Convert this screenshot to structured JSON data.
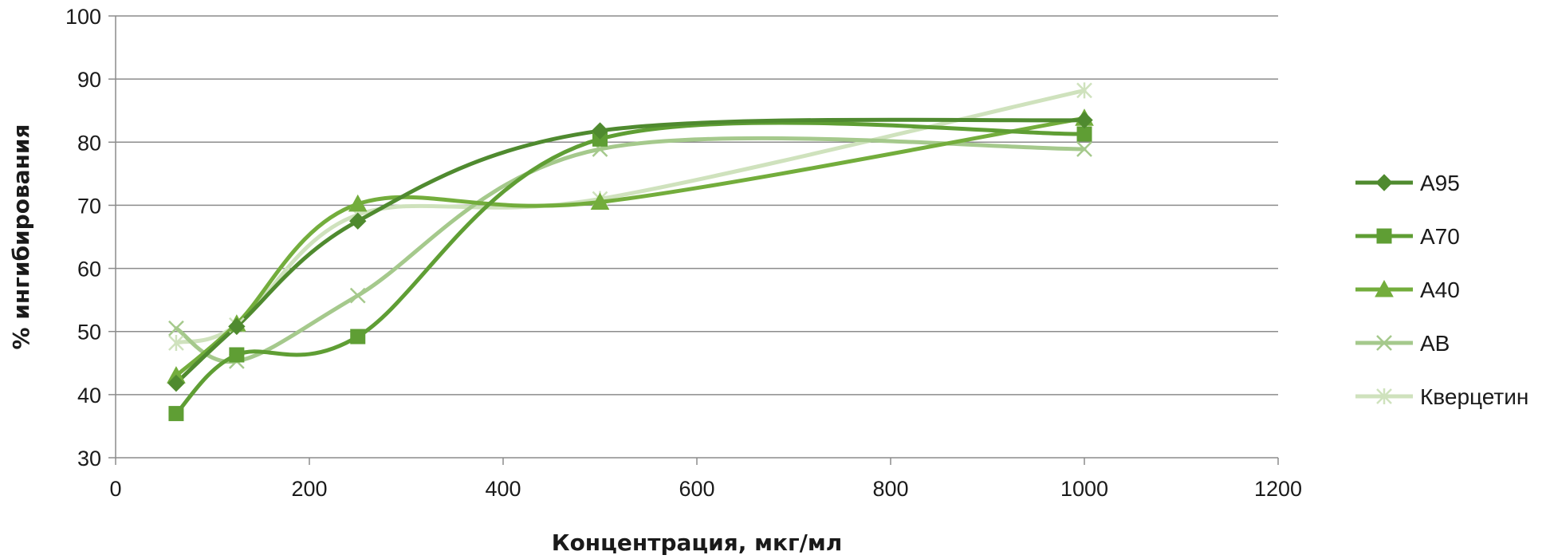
{
  "chart_data": {
    "type": "line",
    "title": "",
    "xlabel": "Концентрация, мкг/мл",
    "ylabel": "% ингибирования",
    "xlim": [
      0,
      1200
    ],
    "ylim": [
      30,
      100
    ],
    "xticks": [
      0,
      200,
      400,
      600,
      800,
      1000,
      1200
    ],
    "yticks": [
      30,
      40,
      50,
      60,
      70,
      80,
      90,
      100
    ],
    "grid": "horizontal",
    "smooth": true,
    "legend_position": "right",
    "series": [
      {
        "name": "A95",
        "marker": "diamond",
        "color": "#4f8a2f",
        "x": [
          62.5,
          125,
          250,
          500,
          1000
        ],
        "y": [
          41.8,
          50.8,
          67.5,
          81.8,
          83.5
        ]
      },
      {
        "name": "A70",
        "marker": "square",
        "color": "#5f9e34",
        "x": [
          62.5,
          125,
          250,
          500,
          1000
        ],
        "y": [
          37.0,
          46.3,
          49.2,
          80.5,
          81.3
        ]
      },
      {
        "name": "A40",
        "marker": "triangle",
        "color": "#73ad3c",
        "x": [
          62.5,
          125,
          250,
          500,
          1000
        ],
        "y": [
          43.0,
          51.2,
          70.2,
          70.5,
          83.8
        ]
      },
      {
        "name": "AB",
        "marker": "x",
        "color": "#a5c98c",
        "x": [
          62.5,
          125,
          250,
          500,
          1000
        ],
        "y": [
          50.5,
          45.3,
          55.7,
          78.9,
          78.9
        ]
      },
      {
        "name": "Кверцетин",
        "marker": "star",
        "color": "#cfe2bd",
        "x": [
          62.5,
          125,
          250,
          500,
          1000
        ],
        "y": [
          48.2,
          51.0,
          68.5,
          71.0,
          88.2
        ]
      }
    ]
  }
}
